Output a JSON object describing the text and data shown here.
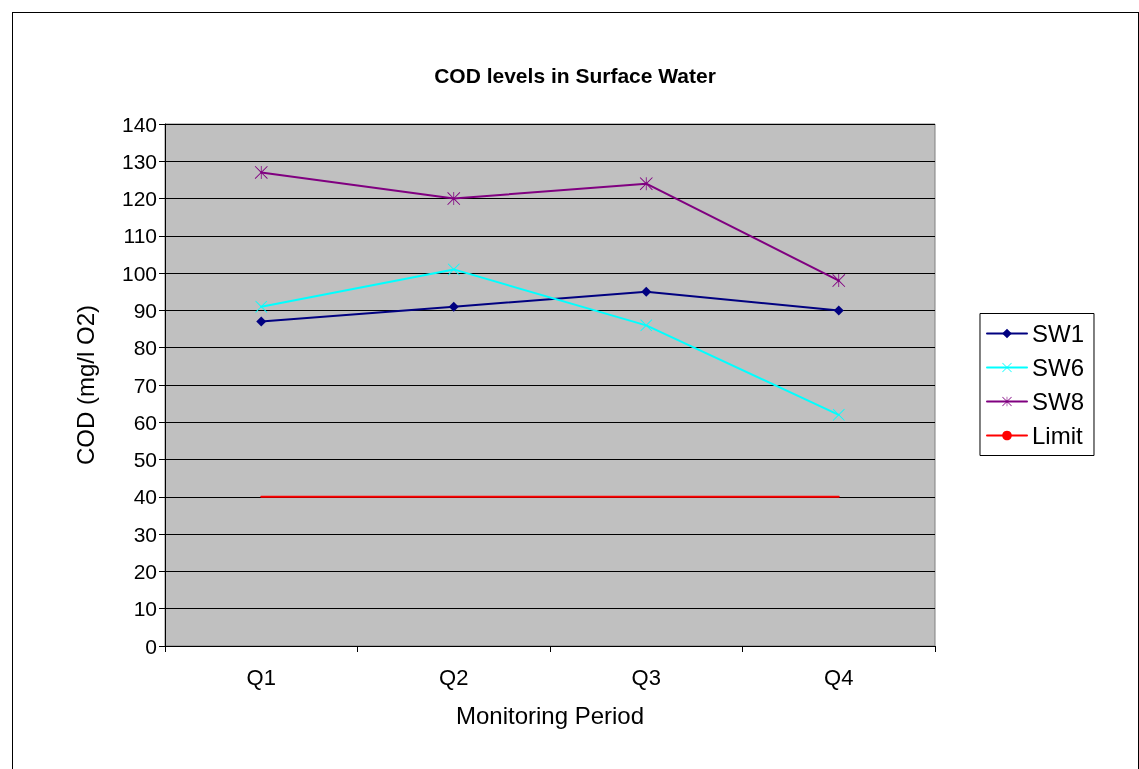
{
  "chart_data": {
    "type": "line",
    "title": "COD levels in Surface Water",
    "xlabel": "Monitoring Period",
    "ylabel": "COD (mg/l O2)",
    "categories": [
      "Q1",
      "Q2",
      "Q3",
      "Q4"
    ],
    "series": [
      {
        "name": "SW1",
        "color": "#000080",
        "marker": "diamond",
        "values": [
          87,
          91,
          95,
          90
        ]
      },
      {
        "name": "SW6",
        "color": "#00ffff",
        "marker": "cross",
        "values": [
          91,
          101,
          86,
          62
        ]
      },
      {
        "name": "SW8",
        "color": "#800080",
        "marker": "star",
        "values": [
          127,
          120,
          124,
          98
        ]
      },
      {
        "name": "Limit",
        "color": "#ff0000",
        "marker": "none",
        "values": [
          40,
          40,
          40,
          40
        ]
      }
    ],
    "ylim": [
      0,
      140
    ],
    "yticks": [
      0,
      10,
      20,
      30,
      40,
      50,
      60,
      70,
      80,
      90,
      100,
      110,
      120,
      130,
      140
    ],
    "grid": "y",
    "legend": "right",
    "line_style": "solid"
  }
}
